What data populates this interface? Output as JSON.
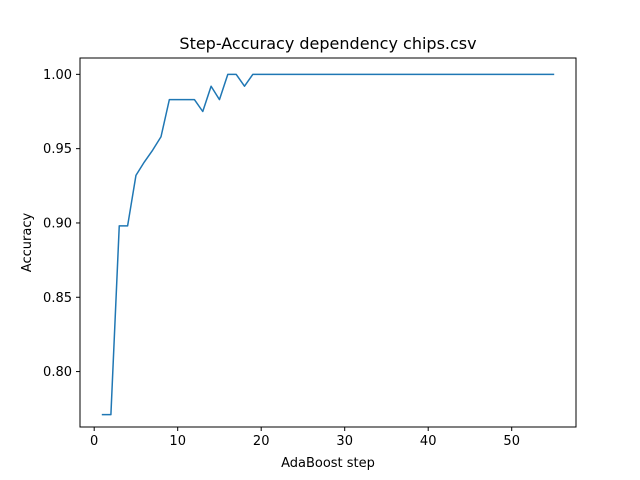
{
  "chart_data": {
    "type": "line",
    "title": "Step-Accuracy dependency chips.csv",
    "xlabel": "AdaBoost step",
    "ylabel": "Accuracy",
    "xlim": [
      -1.7,
      57.7
    ],
    "ylim": [
      0.7627,
      1.011
    ],
    "xticks": [
      0,
      10,
      20,
      30,
      40,
      50
    ],
    "xtick_labels": [
      "0",
      "10",
      "20",
      "30",
      "40",
      "50"
    ],
    "yticks": [
      0.8,
      0.85,
      0.9,
      0.95,
      1.0
    ],
    "ytick_labels": [
      "0.80",
      "0.85",
      "0.90",
      "0.95",
      "1.00"
    ],
    "grid": false,
    "series": [
      {
        "color": "#1f77b4",
        "x": [
          1,
          2,
          3,
          4,
          5,
          6,
          7,
          8,
          9,
          10,
          11,
          12,
          13,
          14,
          15,
          16,
          17,
          18,
          19,
          20,
          55
        ],
        "y": [
          0.771,
          0.771,
          0.898,
          0.898,
          0.932,
          0.941,
          0.949,
          0.958,
          0.983,
          0.983,
          0.983,
          0.983,
          0.975,
          0.992,
          0.983,
          1.0,
          1.0,
          0.992,
          1.0,
          1.0,
          1.0
        ]
      }
    ]
  }
}
